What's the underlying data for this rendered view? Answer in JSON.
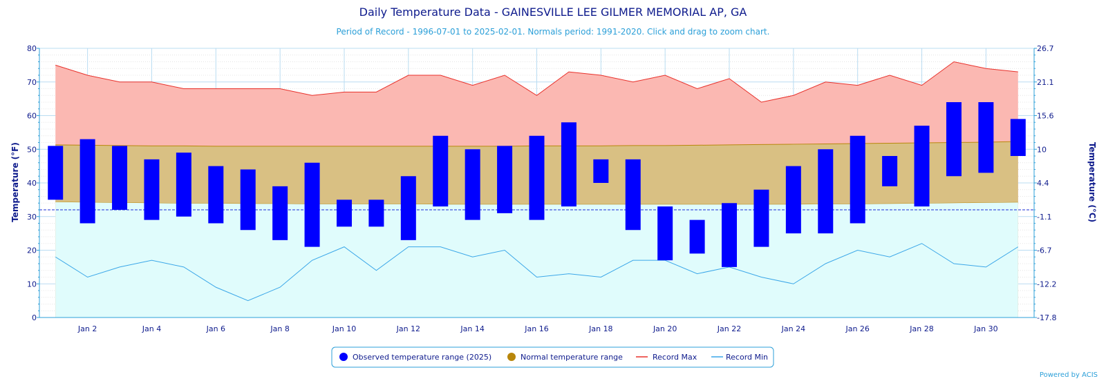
{
  "chart_data": {
    "type": "bar",
    "title": "Daily Temperature Data - GAINESVILLE LEE GILMER MEMORIAL AP, GA",
    "subtitle": "Period of Record - 1996-07-01 to 2025-02-01. Normals period: 1991-2020. Click and drag to zoom chart.",
    "ylabel": "Temperature (°F)",
    "ylabel_right": "Temperature (°C)",
    "ylim": [
      0,
      80
    ],
    "x_range": [
      0.5,
      31.5
    ],
    "yticks": [
      "0",
      "10",
      "20",
      "30",
      "40",
      "50",
      "60",
      "70",
      "80"
    ],
    "yticks_right": [
      "-17.8",
      "-12.2",
      "-6.7",
      "-1.1",
      "4.4",
      "10",
      "15.6",
      "21.1",
      "26.7"
    ],
    "xticks": [
      "Jan 2",
      "Jan 4",
      "Jan 6",
      "Jan 8",
      "Jan 10",
      "Jan 12",
      "Jan 14",
      "Jan 16",
      "Jan 18",
      "Jan 20",
      "Jan 22",
      "Jan 24",
      "Jan 26",
      "Jan 28",
      "Jan 30"
    ],
    "xtick_days": [
      2,
      4,
      6,
      8,
      10,
      12,
      14,
      16,
      18,
      20,
      22,
      24,
      26,
      28,
      30
    ],
    "freezing_line": 32,
    "grid": true,
    "legend_position": "bottom-center",
    "days": [
      1,
      2,
      3,
      4,
      5,
      6,
      7,
      8,
      9,
      10,
      11,
      12,
      13,
      14,
      15,
      16,
      17,
      18,
      19,
      20,
      21,
      22,
      23,
      24,
      25,
      26,
      27,
      28,
      29,
      30,
      31
    ],
    "series": [
      {
        "name": "Observed temperature range (2025)",
        "color": "#0000ff",
        "high": [
          51,
          53,
          51,
          47,
          49,
          45,
          44,
          39,
          46,
          35,
          35,
          42,
          54,
          50,
          51,
          54,
          58,
          47,
          47,
          33,
          29,
          34,
          38,
          45,
          50,
          54,
          48,
          57,
          64,
          64,
          59
        ],
        "low": [
          35,
          28,
          32,
          29,
          30,
          28,
          26,
          23,
          21,
          27,
          27,
          23,
          33,
          29,
          31,
          29,
          33,
          40,
          26,
          17,
          19,
          15,
          21,
          25,
          25,
          28,
          39,
          33,
          42,
          43,
          48
        ]
      },
      {
        "name": "Normal temperature range",
        "color": "#b8860b",
        "high": [
          51.3,
          51.2,
          51.1,
          51.0,
          51.0,
          50.9,
          50.9,
          50.9,
          50.9,
          50.9,
          50.9,
          50.9,
          50.9,
          50.9,
          50.9,
          51.0,
          51.0,
          51.0,
          51.1,
          51.1,
          51.2,
          51.3,
          51.4,
          51.5,
          51.6,
          51.7,
          51.8,
          51.9,
          52.0,
          52.1,
          52.3
        ],
        "low": [
          34.3,
          34.2,
          34.1,
          34.0,
          33.9,
          33.9,
          33.8,
          33.8,
          33.7,
          33.7,
          33.7,
          33.7,
          33.6,
          33.6,
          33.6,
          33.6,
          33.6,
          33.6,
          33.6,
          33.6,
          33.6,
          33.6,
          33.6,
          33.6,
          33.7,
          33.7,
          33.8,
          33.9,
          34.0,
          34.1,
          34.2
        ]
      },
      {
        "name": "Record Max",
        "color": "#e8302a",
        "values": [
          75,
          72,
          70,
          70,
          68,
          68,
          68,
          68,
          66,
          67,
          67,
          72,
          72,
          69,
          72,
          66,
          73,
          72,
          70,
          72,
          68,
          71,
          64,
          66,
          70,
          69,
          72,
          69,
          76,
          74,
          73
        ]
      },
      {
        "name": "Record Min",
        "color": "#3aa6e8",
        "values": [
          18,
          12,
          15,
          17,
          15,
          9,
          5,
          9,
          17,
          21,
          14,
          21,
          21,
          18,
          20,
          12,
          13,
          12,
          17,
          17,
          13,
          15,
          12,
          10,
          16,
          20,
          18,
          22,
          16,
          15,
          21
        ]
      }
    ]
  },
  "credit": "Powered by ACIS"
}
